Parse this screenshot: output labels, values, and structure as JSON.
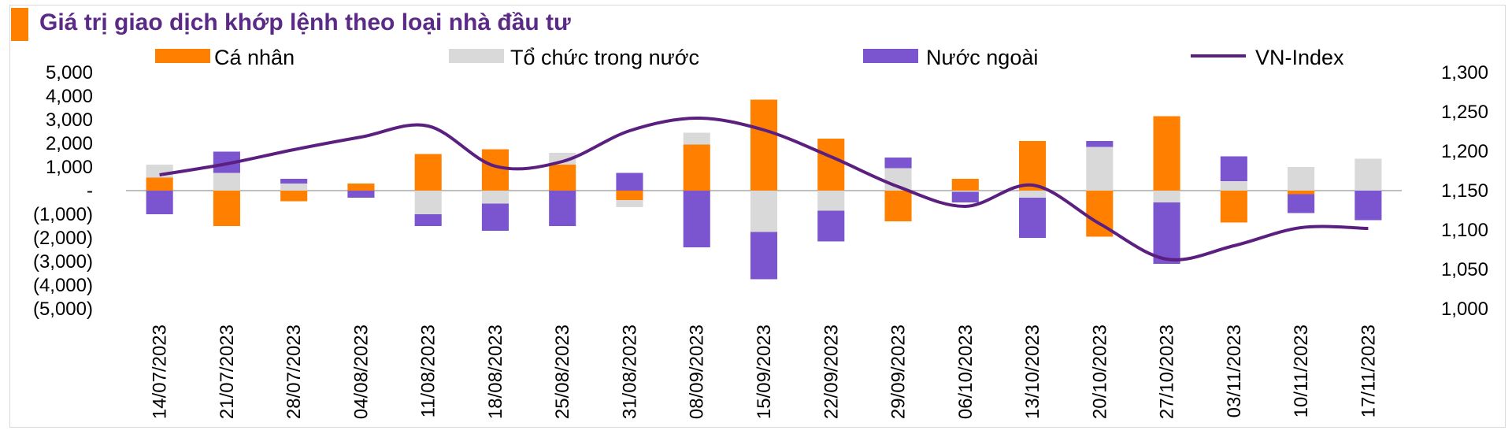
{
  "title": "Giá trị giao dịch khớp lệnh theo loại nhà đầu tư",
  "colors": {
    "ca_nhan": "#ff7f00",
    "to_chuc": "#d9d9d9",
    "nuoc_ngoai": "#7b54cf",
    "vn_index": "#5b1f80",
    "zero_line": "#bfbfbf",
    "title": "#5b2a86"
  },
  "chart_data": {
    "type": "bar",
    "stacked": true,
    "title": "Giá trị giao dịch khớp lệnh theo loại nhà đầu tư",
    "categories": [
      "14/07/2023",
      "21/07/2023",
      "28/07/2023",
      "04/08/2023",
      "11/08/2023",
      "18/08/2023",
      "25/08/2023",
      "31/08/2023",
      "08/09/2023",
      "15/09/2023",
      "22/09/2023",
      "29/09/2023",
      "06/10/2023",
      "13/10/2023",
      "20/10/2023",
      "27/10/2023",
      "03/11/2023",
      "10/11/2023",
      "17/11/2023"
    ],
    "y_left": {
      "range": [
        -5000,
        5000
      ],
      "ticks": [
        5000,
        4000,
        3000,
        2000,
        1000,
        0,
        -1000,
        -2000,
        -3000,
        -4000,
        -5000
      ],
      "tick_labels": [
        "5,000",
        "4,000",
        "3,000",
        "2,000",
        "1,000",
        "-",
        "(1,000)",
        "(2,000)",
        "(3,000)",
        "(4,000)",
        "(5,000)"
      ]
    },
    "y_right": {
      "range": [
        1000,
        1300
      ],
      "ticks": [
        1300,
        1250,
        1200,
        1150,
        1100,
        1050,
        1000
      ],
      "tick_labels": [
        "1,300",
        "1,250",
        "1,200",
        "1,150",
        "1,100",
        "1,050",
        "1,000"
      ]
    },
    "series": [
      {
        "name": "Cá nhân",
        "type": "bar",
        "axis": "left",
        "values": [
          550,
          -1500,
          -450,
          300,
          1550,
          1750,
          1100,
          -400,
          1950,
          3850,
          2200,
          -1300,
          500,
          2100,
          -1950,
          3150,
          -1350,
          -150,
          0
        ]
      },
      {
        "name": "Tổ chức trong nước",
        "type": "bar",
        "axis": "left",
        "values": [
          550,
          750,
          300,
          0,
          -1000,
          -550,
          500,
          -300,
          500,
          -1750,
          -850,
          950,
          -50,
          -300,
          1850,
          -500,
          400,
          1000,
          1350
        ]
      },
      {
        "name": "Nước ngoài",
        "type": "bar",
        "axis": "left",
        "values": [
          -1000,
          900,
          200,
          -300,
          -500,
          -1150,
          -1500,
          750,
          -2400,
          -2000,
          -1300,
          450,
          -450,
          -1700,
          250,
          -2600,
          1050,
          -800,
          -1250
        ]
      },
      {
        "name": "VN-Index",
        "type": "line",
        "axis": "right",
        "values": [
          1170,
          1184,
          1202,
          1218,
          1232,
          1181,
          1187,
          1226,
          1242,
          1227,
          1193,
          1155,
          1130,
          1157,
          1108,
          1063,
          1080,
          1103,
          1102
        ]
      }
    ],
    "legend": {
      "position": "top",
      "entries": [
        "Cá nhân",
        "Tổ chức trong nước",
        "Nước ngoài",
        "VN-Index"
      ]
    },
    "grid": false
  }
}
